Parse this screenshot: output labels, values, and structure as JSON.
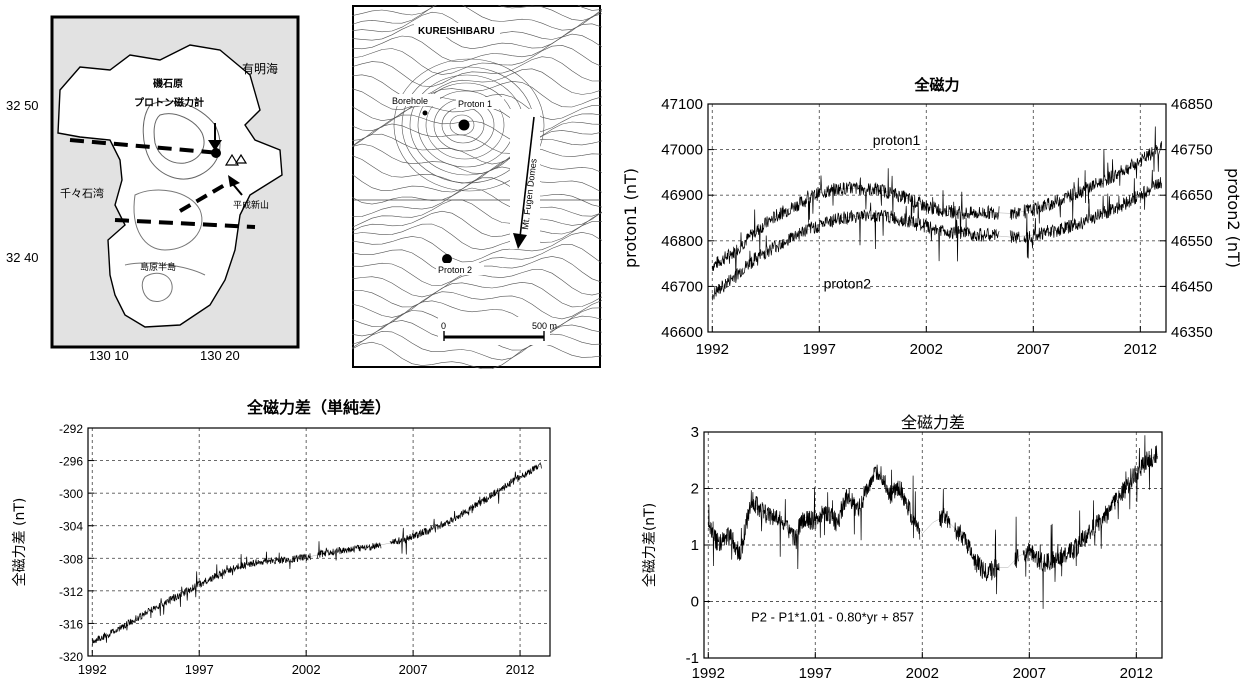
{
  "map_left": {
    "sea_north": "有明海",
    "bay_west": "千々石湾",
    "site_label_1": "磯石原",
    "site_label_2": "プロトン磁力計",
    "dome_label": "平成新山",
    "peninsula_label": "島原半島",
    "lat_ticks": [
      "32 50",
      "32 40"
    ],
    "lon_ticks": [
      "130 10",
      "130 20"
    ]
  },
  "map_right": {
    "title": "KUREISHIBARU",
    "borehole": "Borehole",
    "proton1": "Proton 1",
    "proton2": "Proton 2",
    "arrow_label": "Mt. Fugen Domes",
    "scale_zero": "0",
    "scale_end": "500 m"
  },
  "chart_data": [
    {
      "type": "line",
      "title": "全磁力",
      "ylabel": "proton1 (nT)",
      "y2label": "proton2 (nT)",
      "xlim": [
        1991.8,
        2013.2
      ],
      "ylim": [
        46600,
        47100
      ],
      "y2lim": [
        46350,
        46850
      ],
      "xticks": [
        "1992",
        "1997",
        "2002",
        "2007",
        "2012"
      ],
      "yticks": [
        "46600",
        "46700",
        "46800",
        "46900",
        "47000",
        "47100"
      ],
      "y2ticks": [
        "46350",
        "46450",
        "46550",
        "46650",
        "46750",
        "46850"
      ],
      "grid": true,
      "annotations": [
        "proton1",
        "proton2"
      ],
      "series": [
        {
          "name": "proton1",
          "axis": "left",
          "x": [
            1992,
            1993,
            1994,
            1995,
            1996,
            1997,
            1998,
            1999,
            2000,
            2001,
            2002,
            2003,
            2004,
            2005,
            2006,
            2007,
            2008,
            2009,
            2010,
            2011,
            2012,
            2013
          ],
          "values": [
            46745,
            46775,
            46820,
            46855,
            46880,
            46905,
            46915,
            46915,
            46910,
            46895,
            46875,
            46865,
            46860,
            46862,
            46860,
            46868,
            46885,
            46905,
            46925,
            46948,
            46975,
            47005
          ]
        },
        {
          "name": "proton2",
          "axis": "right",
          "x": [
            1992,
            1993,
            1994,
            1995,
            1996,
            1997,
            1998,
            1999,
            2000,
            2001,
            2002,
            2003,
            2004,
            2005,
            2006,
            2007,
            2008,
            2009,
            2010,
            2011,
            2012,
            2013
          ],
          "values": [
            46430,
            46470,
            46510,
            46540,
            46565,
            46585,
            46600,
            46605,
            46605,
            46595,
            46580,
            46570,
            46565,
            46562,
            46558,
            46563,
            46572,
            46585,
            46605,
            46625,
            46650,
            46680
          ]
        }
      ]
    },
    {
      "type": "line",
      "title": "全磁力差（単純差）",
      "ylabel": "全磁力差 (nT)",
      "xlim": [
        1991.8,
        2013.4
      ],
      "ylim": [
        -320,
        -292
      ],
      "xticks": [
        "1992",
        "1997",
        "2002",
        "2007",
        "2012"
      ],
      "yticks": [
        "-320",
        "-316",
        "-312",
        "-308",
        "-304",
        "-300",
        "-296",
        "-292"
      ],
      "grid": true,
      "series": [
        {
          "name": "",
          "x": [
            1992,
            1993,
            1994,
            1995,
            1996,
            1997,
            1998,
            1999,
            2000,
            2001,
            2002,
            2003,
            2004,
            2005,
            2006,
            2007,
            2008,
            2009,
            2010,
            2011,
            2012,
            2013
          ],
          "values": [
            -318.3,
            -317.0,
            -315.5,
            -314.0,
            -312.6,
            -311.2,
            -309.9,
            -308.9,
            -308.4,
            -308.2,
            -307.9,
            -307.3,
            -306.9,
            -306.6,
            -306.1,
            -305.3,
            -304.3,
            -303.0,
            -301.4,
            -299.7,
            -298.0,
            -296.6
          ]
        }
      ]
    },
    {
      "type": "line",
      "title": "全磁力差",
      "ylabel": "全磁力差(nT)",
      "xlim": [
        1991.8,
        2013.2
      ],
      "ylim": [
        -1,
        3
      ],
      "xticks": [
        "1992",
        "1997",
        "2002",
        "2007",
        "2012"
      ],
      "yticks": [
        "-1",
        "0",
        "1",
        "2",
        "3"
      ],
      "grid": true,
      "annotations": [
        "P2 - P1*1.01 - 0.80*yr + 857"
      ],
      "series": [
        {
          "name": "",
          "x": [
            1992,
            1992.5,
            1993,
            1993.5,
            1994,
            1994.5,
            1995,
            1995.5,
            1996,
            1996.5,
            1997,
            1997.5,
            1998,
            1998.5,
            1999,
            1999.5,
            2000,
            2000.5,
            2001,
            2001.5,
            2002,
            2002.5,
            2003,
            2003.5,
            2004,
            2004.5,
            2005,
            2005.5,
            2006,
            2006.5,
            2007,
            2007.5,
            2008,
            2008.5,
            2009,
            2009.5,
            2010,
            2010.5,
            2011,
            2011.5,
            2012,
            2012.5,
            2013
          ],
          "values": [
            1.3,
            1.0,
            1.2,
            0.8,
            1.8,
            1.6,
            1.5,
            1.4,
            1.1,
            1.5,
            1.4,
            1.6,
            1.4,
            1.9,
            1.6,
            2.1,
            2.3,
            1.9,
            2.0,
            1.5,
            1.2,
            1.4,
            1.5,
            1.3,
            1.1,
            0.7,
            0.5,
            0.6,
            0.6,
            0.8,
            0.9,
            0.7,
            0.7,
            0.8,
            0.9,
            1.1,
            1.3,
            1.5,
            1.8,
            2.0,
            2.3,
            2.5,
            2.6
          ]
        }
      ]
    }
  ]
}
